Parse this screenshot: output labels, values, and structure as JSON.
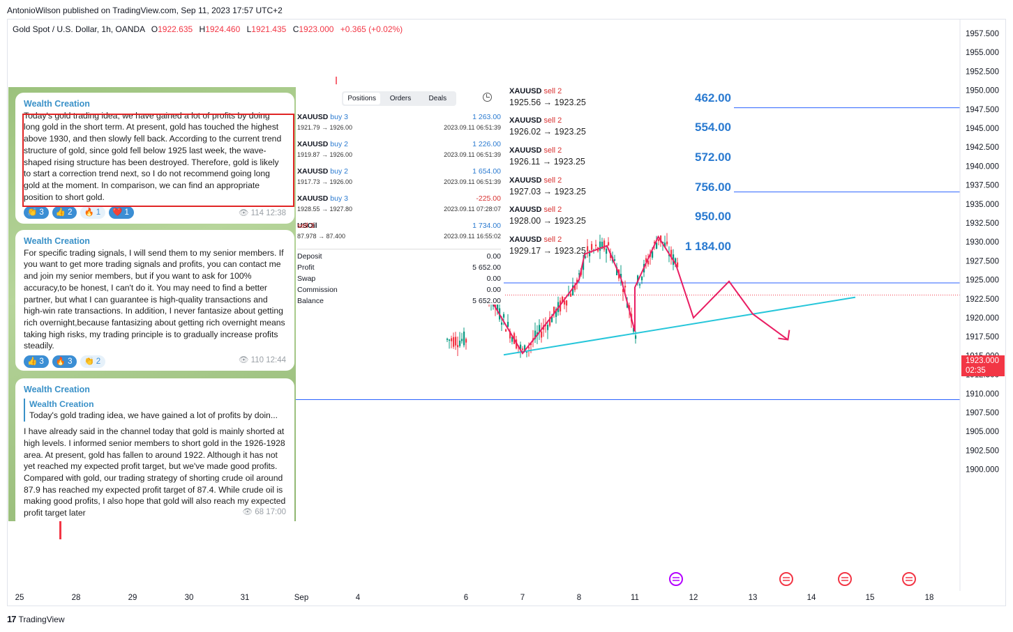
{
  "header": {
    "publisher": "AntonioWilson published on TradingView.com, Sep 11, 2023 17:57 UTC+2",
    "symbol": "Gold Spot / U.S. Dollar, 1h, OANDA",
    "open_label": "O",
    "open": "1922.635",
    "high_label": "H",
    "high": "1924.460",
    "low_label": "L",
    "low": "1921.435",
    "close_label": "C",
    "close": "1923.000",
    "change": "+0.365 (+0.02%)"
  },
  "price_tag": {
    "price": "1923.000",
    "countdown": "02:35"
  },
  "footer": {
    "brand": "TradingView",
    "logo": "17"
  },
  "chart_data": {
    "type": "line",
    "y_ticks": [
      "1957.500",
      "1955.000",
      "1952.500",
      "1950.000",
      "1947.500",
      "1945.000",
      "1942.500",
      "1940.000",
      "1937.500",
      "1935.000",
      "1932.500",
      "1930.000",
      "1927.500",
      "1925.000",
      "1922.500",
      "1920.000",
      "1917.500",
      "1915.000",
      "1912.500",
      "1910.000",
      "1907.500",
      "1905.000",
      "1902.500",
      "1900.000"
    ],
    "y_tick_values": [
      1957.5,
      1955,
      1952.5,
      1950,
      1947.5,
      1945,
      1942.5,
      1940,
      1937.5,
      1935,
      1932.5,
      1930,
      1927.5,
      1925,
      1922.5,
      1920,
      1917.5,
      1915,
      1912.5,
      1910,
      1907.5,
      1905,
      1902.5,
      1900
    ],
    "x_ticks": [
      "25",
      "28",
      "29",
      "30",
      "31",
      "Sep",
      "4",
      "6",
      "7",
      "8",
      "11",
      "12",
      "13",
      "14",
      "15",
      "18"
    ],
    "ylim": [
      1898.5,
      1959.0
    ],
    "horizontal_lines": [
      1947.7,
      1936.6,
      1924.6,
      1909.2
    ],
    "current_price": 1923.0,
    "price_path": [
      {
        "x": "6",
        "y": 1927.3
      },
      {
        "x": "6.2",
        "y": 1925.4
      },
      {
        "x": "7",
        "y": 1915.3
      },
      {
        "x": "7.5",
        "y": 1920
      },
      {
        "x": "8",
        "y": 1925
      },
      {
        "x": "8.2",
        "y": 1928.4
      },
      {
        "x": "9",
        "y": 1929.5
      },
      {
        "x": "10",
        "y": 1925.2
      },
      {
        "x": "11",
        "y": 1918.2
      },
      {
        "x": "11",
        "y": 1924
      },
      {
        "x": "11.4",
        "y": 1930.7
      },
      {
        "x": "11.7",
        "y": 1927
      },
      {
        "x": "12",
        "y": 1920
      },
      {
        "x": "12.6",
        "y": 1924.8
      },
      {
        "x": "13",
        "y": 1920.5
      },
      {
        "x": "13.6",
        "y": 1917.1
      }
    ],
    "trendline": [
      {
        "x": "7",
        "y": 1915.2
      },
      {
        "x": "14.8",
        "y": 1922.7
      }
    ],
    "candles_y_range": [
      1915.5,
      1931.2
    ]
  },
  "telegram": {
    "messages": [
      {
        "author": "Wealth Creation",
        "text": "Today's gold trading idea, we have gained a lot of profits by doing long gold in the short term. At present, gold has touched the highest above 1930, and then slowly fell back. According to the current trend structure of gold, since gold fell below 1925 last week, the wave-shaped rising structure has been destroyed. Therefore, gold is likely to start a correction trend next, so I do not recommend going long gold at the moment. In comparison, we can find an appropriate position to short gold.",
        "reactions": [
          {
            "emoji": "👏",
            "count": "3"
          },
          {
            "emoji": "👍",
            "count": "2"
          },
          {
            "emoji": "🔥",
            "count": "1"
          },
          {
            "emoji": "❤️",
            "count": "1"
          }
        ],
        "views": "114",
        "time": "12:38"
      },
      {
        "author": "Wealth Creation",
        "text": "For specific trading signals, I will send them to my senior members. If you want to get more trading signals and profits, you can contact me and join my senior members, but if you want to ask for 100% accuracy,to be honest, I can't do it. You may need to find a better partner, but what I can guarantee is high-quality transactions and high-win rate transactions. In addition, I never fantasize about getting rich overnight,because fantasizing about getting rich overnight means taking high risks, my trading principle is to gradually increase profits steadily.",
        "reactions": [
          {
            "emoji": "👍",
            "count": "3"
          },
          {
            "emoji": "🔥",
            "count": "3"
          },
          {
            "emoji": "👏",
            "count": "2"
          }
        ],
        "views": "110",
        "time": "12:44"
      },
      {
        "author": "Wealth Creation",
        "reply_author": "Wealth Creation",
        "reply_text": "Today's gold trading idea, we have gained a lot of profits by doin...",
        "text": "I have already said in the channel today that gold is mainly shorted at high levels. I informed senior members to short gold in the 1926-1928 area. At present, gold has fallen to around 1922. Although it has not yet reached my expected profit target, but we've made good profits. Compared with gold, our trading strategy of shorting crude oil around 87.9 has reached my expected profit target of 87.4. While crude oil is making good profits, I also hope that gold will also reach my expected profit target later",
        "views": "68",
        "time": "17:00"
      }
    ]
  },
  "mt": {
    "tabs": [
      "Positions",
      "Orders",
      "Deals"
    ],
    "positions": [
      {
        "symbol": "XAUUSD",
        "side": "buy 3",
        "type": "buy",
        "prices": "1921.79 → 1926.00",
        "profit": "1 263.00",
        "date": "2023.09.11 06:51:39"
      },
      {
        "symbol": "XAUUSD",
        "side": "buy 2",
        "type": "buy",
        "prices": "1919.87 → 1926.00",
        "profit": "1 226.00",
        "date": "2023.09.11 06:51:39"
      },
      {
        "symbol": "XAUUSD",
        "side": "buy 2",
        "type": "buy",
        "prices": "1917.73 → 1926.00",
        "profit": "1 654.00",
        "date": "2023.09.11 06:51:39"
      },
      {
        "symbol": "XAUUSD",
        "side": "buy 3",
        "type": "buy",
        "prices": "1928.55 → 1927.80",
        "profit": "-225.00",
        "date": "2023.09.11 07:28:07"
      },
      {
        "symbol": "USOil",
        "side": "sell 3",
        "type": "sell",
        "prices": "87.978 → 87.400",
        "profit": "1 734.00",
        "date": "2023.09.11 16:55:02"
      }
    ],
    "summary": [
      {
        "label": "Deposit",
        "value": "0.00"
      },
      {
        "label": "Profit",
        "value": "5 652.00"
      },
      {
        "label": "Swap",
        "value": "0.00"
      },
      {
        "label": "Commission",
        "value": "0.00"
      },
      {
        "label": "Balance",
        "value": "5 652.00"
      }
    ]
  },
  "sells": [
    {
      "symbol": "XAUUSD",
      "side": "sell 2",
      "prices": "1925.56 → 1923.25",
      "amount": "462.00"
    },
    {
      "symbol": "XAUUSD",
      "side": "sell 2",
      "prices": "1926.02 → 1923.25",
      "amount": "554.00"
    },
    {
      "symbol": "XAUUSD",
      "side": "sell 2",
      "prices": "1926.11 → 1923.25",
      "amount": "572.00"
    },
    {
      "symbol": "XAUUSD",
      "side": "sell 2",
      "prices": "1927.03 → 1923.25",
      "amount": "756.00"
    },
    {
      "symbol": "XAUUSD",
      "side": "sell 2",
      "prices": "1928.00 → 1923.25",
      "amount": "950.00"
    },
    {
      "symbol": "XAUUSD",
      "side": "sell 2",
      "prices": "1929.17 → 1923.25",
      "amount": "1 184.00"
    }
  ],
  "colors": {
    "down": "#f23645",
    "up": "#089981",
    "line": "#2962ff",
    "trend": "#26c6da",
    "path": "#e91e63"
  }
}
